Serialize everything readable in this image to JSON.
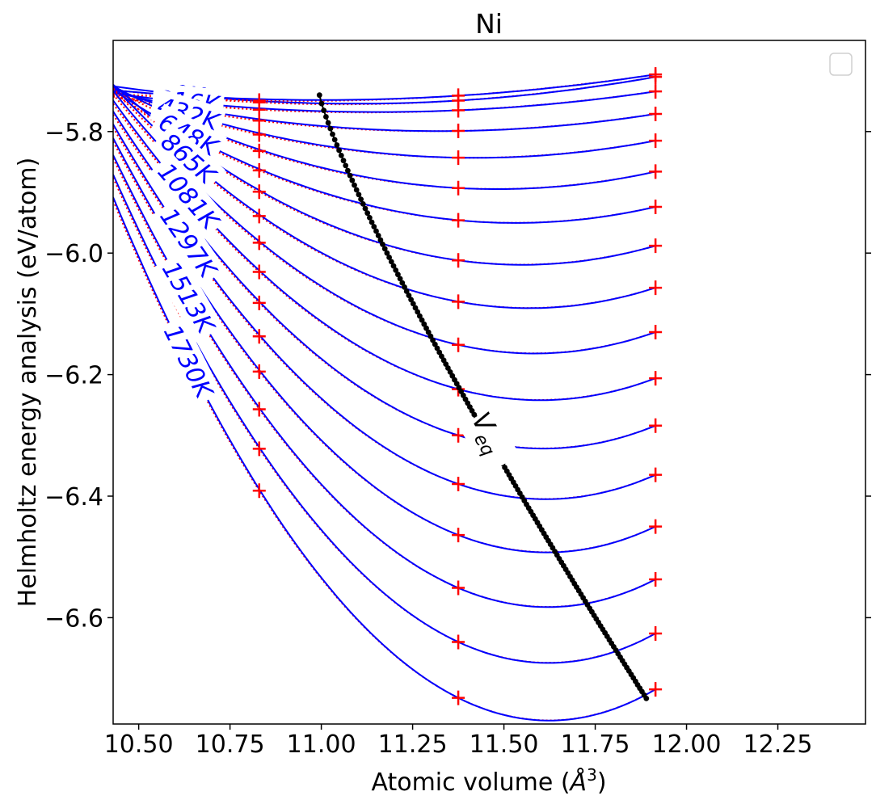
{
  "chart_data": {
    "type": "line",
    "title": "Ni",
    "xlabel": "Atomic volume ($\\AA^3$)",
    "xlabel_parts": {
      "main": "Atomic volume (",
      "symbol": "Å",
      "sup": "3",
      "close": ")"
    },
    "ylabel": "Helmholtz energy analysis (eV/atom)",
    "xlim": [
      10.43,
      12.49
    ],
    "ylim": [
      -6.775,
      -5.65
    ],
    "xticks": [
      10.5,
      10.75,
      11.0,
      11.25,
      11.5,
      11.75,
      12.0,
      12.25
    ],
    "xtick_labels": [
      "10.50",
      "10.75",
      "11.00",
      "11.25",
      "11.50",
      "11.75",
      "12.00",
      "12.25"
    ],
    "yticks": [
      -5.8,
      -6.0,
      -6.2,
      -6.4,
      -6.6
    ],
    "ytick_labels": [
      "−5.8",
      "−6.0",
      "−6.2",
      "−6.4",
      "−6.6"
    ],
    "grid": false,
    "legend": {
      "placement": "top-right",
      "entries": []
    },
    "fit_color": "#0000ff",
    "data_color": "#ff0000",
    "veq_color": "#000000",
    "calc_volumes": [
      10.83,
      11.375,
      11.915
    ],
    "isotherms": [
      {
        "a": -5.752,
        "c": -5.749,
        "b": -5.71,
        "label": "0K"
      },
      {
        "a": -5.749,
        "c": -5.741,
        "b": -5.706
      },
      {
        "a": -5.764,
        "c": -5.765,
        "b": -5.734,
        "label": "216K"
      },
      {
        "a": -5.782,
        "c": -5.799,
        "b": -5.771
      },
      {
        "a": -5.805,
        "c": -5.843,
        "b": -5.815,
        "label": "432K"
      },
      {
        "a": -5.832,
        "c": -5.893,
        "b": -5.866
      },
      {
        "a": -5.864,
        "c": -5.946,
        "b": -5.924,
        "label": "648K"
      },
      {
        "a": -5.899,
        "c": -6.012,
        "b": -5.988
      },
      {
        "a": -5.939,
        "c": -6.08,
        "b": -6.057,
        "label": "865K"
      },
      {
        "a": -5.983,
        "c": -6.151,
        "b": -6.13
      },
      {
        "a": -6.031,
        "c": -6.224,
        "b": -6.206,
        "label": "1081K"
      },
      {
        "a": -6.082,
        "c": -6.3,
        "b": -6.284
      },
      {
        "a": -6.137,
        "c": -6.38,
        "b": -6.365,
        "label": "1297K"
      },
      {
        "a": -6.195,
        "c": -6.464,
        "b": -6.45
      },
      {
        "a": -6.257,
        "c": -6.551,
        "b": -6.537,
        "label": "1513K"
      },
      {
        "a": -6.322,
        "c": -6.64,
        "b": -6.626
      },
      {
        "a": -6.391,
        "c": -6.732,
        "b": -6.718,
        "label": "1730K"
      }
    ],
    "veq": {
      "label_main": "V",
      "label_sub": "eq",
      "v_start": 10.995,
      "v_end": 11.89,
      "e_start": -5.74,
      "e_end": -6.733
    }
  }
}
